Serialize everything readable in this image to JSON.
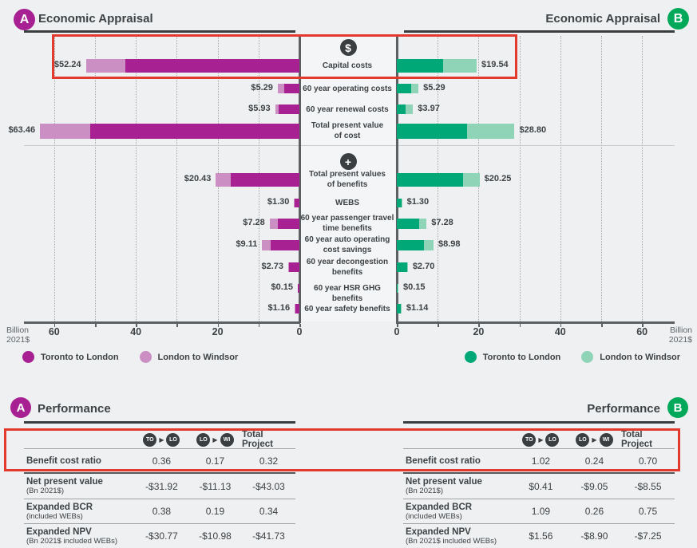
{
  "palette": {
    "magenta_dark": "#A72193",
    "magenta_light": "#CC8FC4",
    "teal_dark": "#00A878",
    "teal_light": "#90D4B8",
    "badge_a": "#A72193",
    "badge_b": "#00A859",
    "highlight_red": "#E23A2F",
    "icon_charcoal": "#3A3E40",
    "text_dark": "#3D4245"
  },
  "headers": {
    "appraisal_a": {
      "badge": "A",
      "title": "Economic Appraisal"
    },
    "appraisal_b": {
      "badge": "B",
      "title": "Economic Appraisal"
    },
    "performance_a": {
      "badge": "A",
      "title": "Performance"
    },
    "performance_b": {
      "badge": "B",
      "title": "Performance"
    }
  },
  "chart_data": {
    "type": "bar",
    "variant": "butterfly",
    "unit": "Billion 2021$",
    "axis_label_lines": [
      "Billion",
      "2021$"
    ],
    "axis_ticks": [
      0,
      20,
      40,
      60
    ],
    "axis_max": 67,
    "grid_step": 10,
    "legend": {
      "dark": "Toronto to London",
      "light": "London to Windsor"
    },
    "icons": {
      "costs": "dollar-icon",
      "benefits": "plus-icon"
    },
    "icon_glyphs": {
      "dollar-icon": "$",
      "plus-icon": "+"
    },
    "rows": [
      {
        "lines": [
          "Capital costs"
        ],
        "icon": "dollar-icon",
        "section": "costs",
        "highlighted": true,
        "a": {
          "label": "$52.24",
          "toronto_london": 42.5,
          "london_windsor": 9.74
        },
        "b": {
          "label": "$19.54",
          "toronto_london": 11.4,
          "london_windsor": 8.14
        }
      },
      {
        "lines": [
          "60 year operating costs"
        ],
        "section": "costs",
        "a": {
          "label": "$5.29",
          "toronto_london": 3.7,
          "london_windsor": 1.59
        },
        "b": {
          "label": "$5.29",
          "toronto_london": 3.6,
          "london_windsor": 1.69
        }
      },
      {
        "lines": [
          "60 year renewal costs"
        ],
        "section": "costs",
        "a": {
          "label": "$5.93",
          "toronto_london": 5.03,
          "london_windsor": 0.9
        },
        "b": {
          "label": "$3.97",
          "toronto_london": 2.1,
          "london_windsor": 1.87
        }
      },
      {
        "lines": [
          "Total present value",
          "of cost"
        ],
        "section": "costs",
        "a": {
          "label": "$63.46",
          "toronto_london": 51.23,
          "london_windsor": 12.23
        },
        "b": {
          "label": "$28.80",
          "toronto_london": 17.1,
          "london_windsor": 11.7
        }
      },
      {
        "lines": [
          "Total present values",
          "of benefits"
        ],
        "icon": "plus-icon",
        "section": "benefits",
        "a": {
          "label": "$20.43",
          "toronto_london": 16.8,
          "london_windsor": 3.63
        },
        "b": {
          "label": "$20.25",
          "toronto_london": 16.3,
          "london_windsor": 3.95
        }
      },
      {
        "lines": [
          "WEBS"
        ],
        "section": "benefits",
        "a": {
          "label": "$1.30",
          "toronto_london": 1.2,
          "london_windsor": 0.1
        },
        "b": {
          "label": "$1.30",
          "toronto_london": 1.2,
          "london_windsor": 0.1
        }
      },
      {
        "lines": [
          "60 year passenger travel",
          "time benefits"
        ],
        "section": "benefits",
        "a": {
          "label": "$7.28",
          "toronto_london": 5.3,
          "london_windsor": 1.98
        },
        "b": {
          "label": "$7.28",
          "toronto_london": 5.5,
          "london_windsor": 1.78
        }
      },
      {
        "lines": [
          "60 year auto operating",
          "cost savings"
        ],
        "section": "benefits",
        "a": {
          "label": "$9.11",
          "toronto_london": 7.0,
          "london_windsor": 2.11
        },
        "b": {
          "label": "$8.98",
          "toronto_london": 6.6,
          "london_windsor": 2.38
        }
      },
      {
        "lines": [
          "60 year decongestion",
          "benefits"
        ],
        "section": "benefits",
        "a": {
          "label": "$2.73",
          "toronto_london": 2.45,
          "london_windsor": 0.28
        },
        "b": {
          "label": "$2.70",
          "toronto_london": 2.45,
          "london_windsor": 0.25
        }
      },
      {
        "lines": [
          "60 year HSR GHG benefits"
        ],
        "section": "benefits",
        "a": {
          "label": "$0.15",
          "toronto_london": 0.15,
          "london_windsor": 0.0
        },
        "b": {
          "label": "$0.15",
          "toronto_london": 0.15,
          "london_windsor": 0.0
        }
      },
      {
        "lines": [
          "60 year safety benefits"
        ],
        "section": "benefits",
        "a": {
          "label": "$1.16",
          "toronto_london": 1.05,
          "london_windsor": 0.11
        },
        "b": {
          "label": "$1.14",
          "toronto_london": 1.0,
          "london_windsor": 0.14
        }
      }
    ]
  },
  "performance": {
    "columns": [
      {
        "type": "route",
        "from": "TO",
        "to": "LO"
      },
      {
        "type": "route",
        "from": "LO",
        "to": "WI"
      },
      {
        "type": "text",
        "label": "Total Project"
      }
    ],
    "rows": [
      {
        "label": "Benefit cost ratio",
        "sub": "",
        "highlighted": true,
        "a": [
          "0.36",
          "0.17",
          "0.32"
        ],
        "b": [
          "1.02",
          "0.24",
          "0.70"
        ]
      },
      {
        "label": "Net present value",
        "sub": "(Bn 2021$)",
        "a": [
          "-$31.92",
          "-$11.13",
          "-$43.03"
        ],
        "b": [
          "$0.41",
          "-$9.05",
          "-$8.55"
        ]
      },
      {
        "label": "Expanded BCR",
        "sub": "(included WEBs)",
        "a": [
          "0.38",
          "0.19",
          "0.34"
        ],
        "b": [
          "1.09",
          "0.26",
          "0.75"
        ]
      },
      {
        "label": "Expanded NPV",
        "sub": "(Bn 2021$ included WEBs)",
        "a": [
          "-$30.77",
          "-$10.98",
          "-$41.73"
        ],
        "b": [
          "$1.56",
          "-$8.90",
          "-$7.25"
        ]
      }
    ]
  }
}
